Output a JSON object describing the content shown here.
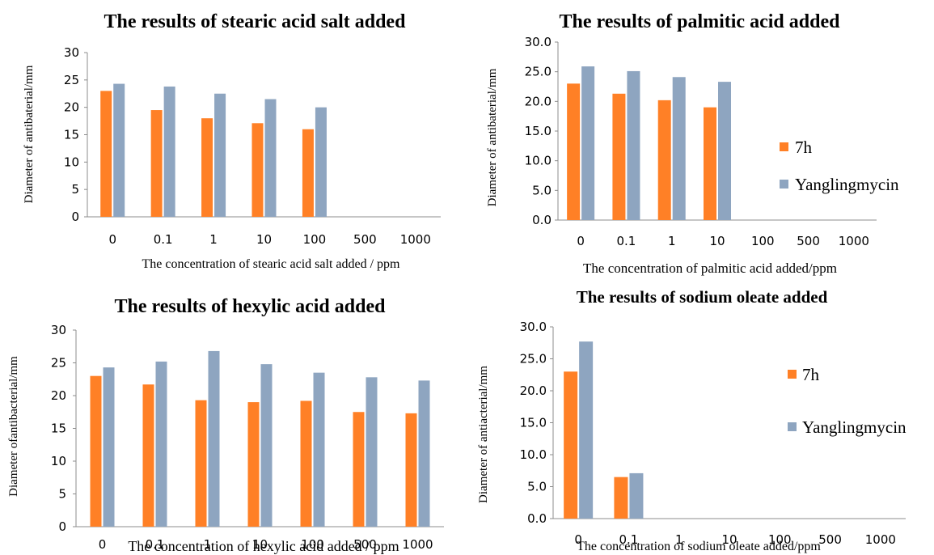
{
  "colors": {
    "series_7h": "#ff8026",
    "series_yanglingmycin": "#8ea5c0",
    "axis": "#8c8c8c"
  },
  "legend": {
    "items": [
      "7h",
      "Yanglingmycin"
    ]
  },
  "chart_data": [
    {
      "type": "bar",
      "title": "The results of stearic acid salt added",
      "xlabel": "The concentration of stearic acid salt added / ppm",
      "ylabel": "Diameter of antibaterial/mm",
      "categories": [
        "0",
        "0.1",
        "1",
        "10",
        "100",
        "500",
        "1000"
      ],
      "yticks": [
        "0",
        "5",
        "10",
        "15",
        "20",
        "25",
        "30"
      ],
      "ylim": [
        0,
        30
      ],
      "series": [
        {
          "name": "7h",
          "values": [
            23.0,
            19.5,
            18.0,
            17.1,
            16.0,
            0,
            0
          ]
        },
        {
          "name": "Yanglingmycin",
          "values": [
            24.3,
            23.8,
            22.5,
            21.5,
            20.0,
            0,
            0
          ]
        }
      ],
      "legend": "none"
    },
    {
      "type": "bar",
      "title": "The results of palmitic acid added",
      "xlabel": "The concentration of palmitic acid added/ppm",
      "ylabel": "Diameter of antibaterial/mm",
      "categories": [
        "0",
        "0.1",
        "1",
        "10",
        "100",
        "500",
        "1000"
      ],
      "yticks": [
        "0.0",
        "5.0",
        "10.0",
        "15.0",
        "20.0",
        "25.0",
        "30.0"
      ],
      "ylim": [
        0,
        30
      ],
      "series": [
        {
          "name": "7h",
          "values": [
            23.0,
            21.3,
            20.2,
            19.0,
            0,
            0,
            0
          ]
        },
        {
          "name": "Yanglingmycin",
          "values": [
            25.9,
            25.1,
            24.1,
            23.3,
            0,
            0,
            0
          ]
        }
      ],
      "legend": "right"
    },
    {
      "type": "bar",
      "title": "The results of hexylic acid added",
      "xlabel": "The concentration of hexylic acid added / ppm",
      "ylabel": "Diameter ofantibacterial/mm",
      "categories": [
        "0",
        "0.1",
        "1",
        "10",
        "100",
        "500",
        "1000"
      ],
      "yticks": [
        "0",
        "5",
        "10",
        "15",
        "20",
        "25",
        "30"
      ],
      "ylim": [
        0,
        30
      ],
      "series": [
        {
          "name": "7h",
          "values": [
            23.0,
            21.7,
            19.3,
            19.0,
            19.2,
            17.5,
            17.3
          ]
        },
        {
          "name": "Yanglingmycin",
          "values": [
            24.3,
            25.2,
            26.8,
            24.8,
            23.5,
            22.8,
            22.3
          ]
        }
      ],
      "legend": "none"
    },
    {
      "type": "bar",
      "title": "The results of sodium oleate added",
      "xlabel": "The concentration of sodium oleate added/ppm",
      "ylabel": "Diameter of antiacterial/mm",
      "categories": [
        "0",
        "0.1",
        "1",
        "10",
        "100",
        "500",
        "1000"
      ],
      "yticks": [
        "0.0",
        "5.0",
        "10.0",
        "15.0",
        "20.0",
        "25.0",
        "30.0"
      ],
      "ylim": [
        0,
        30
      ],
      "series": [
        {
          "name": "7h",
          "values": [
            23.0,
            6.5,
            0,
            0,
            0,
            0,
            0
          ]
        },
        {
          "name": "Yanglingmycin",
          "values": [
            27.7,
            7.1,
            0,
            0,
            0,
            0,
            0
          ]
        }
      ],
      "legend": "right"
    }
  ]
}
